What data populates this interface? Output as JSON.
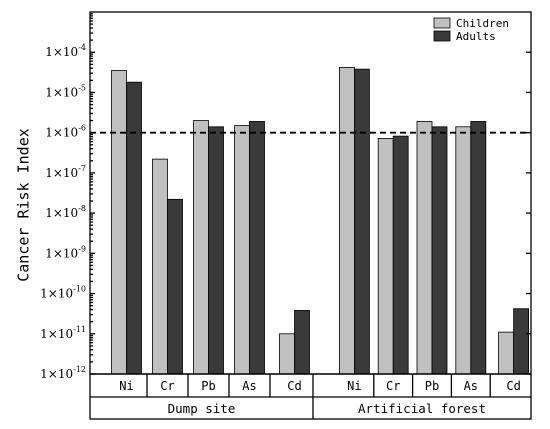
{
  "chart_data": {
    "type": "bar",
    "ylabel": "Cancer Risk Index",
    "yscale": "log",
    "ylim": [
      1e-12,
      0.001
    ],
    "yticks": [
      {
        "exp": "-12",
        "value": 1e-12
      },
      {
        "exp": "-11",
        "value": 1e-11
      },
      {
        "exp": "-10",
        "value": 1e-10
      },
      {
        "exp": "-9",
        "value": 1e-09
      },
      {
        "exp": "-8",
        "value": 1e-08
      },
      {
        "exp": "-7",
        "value": 1e-07
      },
      {
        "exp": "-6",
        "value": 1e-06
      },
      {
        "exp": "-5",
        "value": 1e-05
      },
      {
        "exp": "-4",
        "value": 0.0001
      }
    ],
    "tick_prefix": "1×10",
    "reference_line": {
      "value": 1e-06,
      "style": "dashed"
    },
    "groups": [
      {
        "name": "Dump site",
        "categories": [
          "Ni",
          "Cr",
          "Pb",
          "As",
          "Cd"
        ],
        "series": [
          {
            "name": "Children",
            "values": [
              3.5e-05,
              2.2e-07,
              2e-06,
              1.5e-06,
              1e-11
            ]
          },
          {
            "name": "Adults",
            "values": [
              1.8e-05,
              2.2e-08,
              1.4e-06,
              1.9e-06,
              3.8e-11
            ]
          }
        ]
      },
      {
        "name": "Artificial forest",
        "categories": [
          "Ni",
          "Cr",
          "Pb",
          "As",
          "Cd"
        ],
        "series": [
          {
            "name": "Children",
            "values": [
              4.2e-05,
              7.2e-07,
              1.9e-06,
              1.4e-06,
              1.1e-11
            ]
          },
          {
            "name": "Adults",
            "values": [
              3.8e-05,
              8.2e-07,
              1.4e-06,
              1.9e-06,
              4.2e-11
            ]
          }
        ]
      }
    ],
    "legend": {
      "position": "top-right",
      "entries": [
        {
          "name": "Children",
          "color": "#c0c0c0"
        },
        {
          "name": "Adults",
          "color": "#3a3a3a"
        }
      ]
    },
    "colors": {
      "Children": "#c0c0c0",
      "Adults": "#3a3a3a"
    }
  }
}
